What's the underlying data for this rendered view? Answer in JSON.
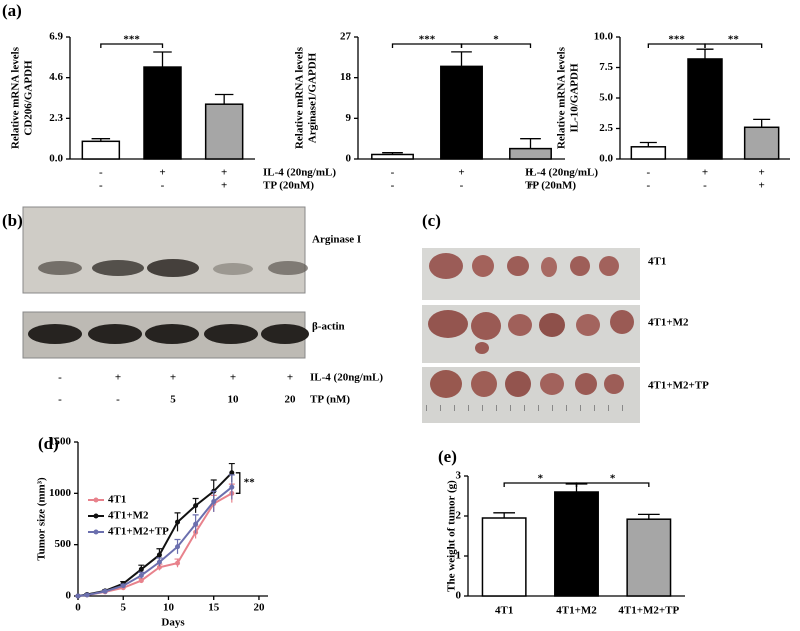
{
  "panel_labels": [
    "(a)",
    "(b)",
    "(c)",
    "(d)",
    "(e)"
  ],
  "chart_data": [
    {
      "type": "bar",
      "ylabel": [
        "Relative mRNA levels",
        "CD206/GAPDH"
      ],
      "values": [
        1.0,
        5.2,
        3.1
      ],
      "errors": [
        0.15,
        0.85,
        0.55
      ],
      "colors": [
        "#ffffff",
        "#000000",
        "#a6a6a6"
      ],
      "ylim": [
        0,
        6.9
      ],
      "yticks": [
        {
          "value": 0,
          "label": "0.0"
        },
        2.3,
        4.6,
        6.9
      ],
      "significance": [
        {
          "between": [
            0,
            1
          ],
          "label": "***"
        }
      ],
      "condition_rows": [
        {
          "marks": [
            "-",
            "+",
            "+"
          ]
        },
        {
          "marks": [
            "-",
            "-",
            "+"
          ]
        }
      ]
    },
    {
      "type": "bar",
      "ylabel": [
        "Relative mRNA levels",
        "Arginase1/GAPDH"
      ],
      "values": [
        1.0,
        20.5,
        2.3
      ],
      "errors": [
        0.4,
        3.2,
        2.2
      ],
      "colors": [
        "#ffffff",
        "#000000",
        "#a6a6a6"
      ],
      "ylim": [
        0,
        27
      ],
      "yticks": [
        0,
        9,
        18,
        27
      ],
      "significance": [
        {
          "between": [
            0,
            1
          ],
          "label": "***"
        },
        {
          "between": [
            1,
            2
          ],
          "label": "*"
        }
      ],
      "condition_rows": [
        {
          "label": "IL-4 (20ng/mL)",
          "marks": [
            "-",
            "+",
            "+"
          ]
        },
        {
          "label": "TP (20nM)",
          "marks": [
            "-",
            "-",
            "+"
          ]
        }
      ]
    },
    {
      "type": "bar",
      "ylabel": [
        "Relative mRNA levels",
        "IL-10/GAPDH"
      ],
      "values": [
        1.0,
        8.2,
        2.6
      ],
      "errors": [
        0.35,
        0.8,
        0.65
      ],
      "colors": [
        "#ffffff",
        "#000000",
        "#a6a6a6"
      ],
      "ylim": [
        0,
        10
      ],
      "yticks": [
        {
          "value": 0,
          "label": "0.0"
        },
        {
          "value": 2.5,
          "label": "2.5"
        },
        {
          "value": 5,
          "label": "5.0"
        },
        {
          "value": 7.5,
          "label": "7.5"
        },
        {
          "value": 10,
          "label": "10.0"
        }
      ],
      "significance": [
        {
          "between": [
            0,
            1
          ],
          "label": "***"
        },
        {
          "between": [
            1,
            2
          ],
          "label": "**"
        }
      ],
      "condition_rows": [
        {
          "label": "IL-4 (20ng/mL)",
          "marks": [
            "-",
            "+",
            "+"
          ]
        },
        {
          "label": "TP (20nM)",
          "marks": [
            "-",
            "-",
            "+"
          ]
        }
      ]
    },
    {
      "type": "line",
      "xlabel": "Days",
      "ylabel": [
        "Tumor size (mm³)"
      ],
      "x": [
        0,
        1,
        3,
        5,
        7,
        9,
        11,
        13,
        15,
        17
      ],
      "series": [
        {
          "name": "4T1",
          "color": "#e8828c",
          "values": [
            0,
            10,
            40,
            80,
            150,
            280,
            320,
            620,
            900,
            1000
          ],
          "errors": [
            0,
            5,
            10,
            15,
            20,
            30,
            40,
            60,
            80,
            90
          ]
        },
        {
          "name": "4T1+M2",
          "color": "#111111",
          "values": [
            0,
            15,
            50,
            120,
            260,
            400,
            720,
            880,
            1020,
            1200
          ],
          "errors": [
            0,
            5,
            10,
            20,
            40,
            60,
            90,
            70,
            110,
            90
          ]
        },
        {
          "name": "4T1+M2+TP",
          "color": "#6b6fae",
          "values": [
            0,
            10,
            45,
            100,
            200,
            330,
            480,
            700,
            920,
            1060
          ],
          "errors": [
            0,
            5,
            10,
            15,
            30,
            40,
            70,
            90,
            100,
            120
          ]
        }
      ],
      "xlim": [
        0,
        21
      ],
      "xticks": [
        0,
        5,
        10,
        15,
        20
      ],
      "ylim": [
        0,
        1500
      ],
      "yticks": [
        0,
        500,
        1000,
        1500
      ],
      "legend": "upper left",
      "annotation": "**"
    },
    {
      "type": "bar",
      "ylabel": [
        "The weight of tumor (g)"
      ],
      "categories": [
        "4T1",
        "4T1+M2",
        "4T1+M2+TP"
      ],
      "values": [
        1.95,
        2.6,
        1.92
      ],
      "errors": [
        0.13,
        0.2,
        0.12
      ],
      "colors": [
        "#ffffff",
        "#000000",
        "#a6a6a6"
      ],
      "ylim": [
        0,
        3
      ],
      "yticks": [
        0,
        1,
        2,
        3
      ],
      "significance": [
        {
          "between": [
            0,
            1
          ],
          "label": "*"
        },
        {
          "between": [
            1,
            2
          ],
          "label": "*"
        }
      ]
    }
  ],
  "blot": {
    "bands": [
      "Arginase I",
      "β-actin"
    ],
    "rows": [
      {
        "label": "IL-4 (20ng/mL)",
        "marks": [
          "-",
          "+",
          "+",
          "+",
          "+"
        ]
      },
      {
        "label": "TP (nM)",
        "marks": [
          "-",
          "-",
          "5",
          "10",
          "20"
        ]
      }
    ]
  },
  "photo": {
    "groups": [
      "4T1",
      "4T1+M2",
      "4T1+M2+TP"
    ]
  }
}
